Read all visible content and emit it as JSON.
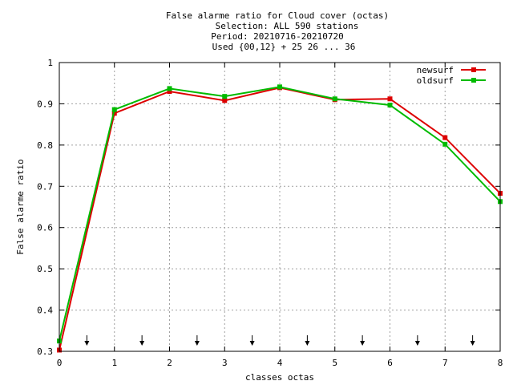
{
  "chart_data": {
    "type": "line",
    "title_lines": [
      "False alarme ratio  for Cloud cover (octas)",
      "Selection: ALL    590 stations",
      "Period: 20210716-20210720",
      "Used {00,12} + 25 26 ... 36"
    ],
    "xlabel": "classes octas",
    "ylabel": "False alarme ratio",
    "xlim": [
      0,
      8
    ],
    "ylim": [
      0.3,
      1
    ],
    "x_ticks": [
      "0",
      "1",
      "2",
      "3",
      "4",
      "5",
      "6",
      "7",
      "8"
    ],
    "y_ticks": [
      "0.3",
      "0.4",
      "0.5",
      "0.6",
      "0.7",
      "0.8",
      "0.9",
      "1"
    ],
    "grid": true,
    "legend_position": "top-right",
    "x": [
      0,
      1,
      2,
      3,
      4,
      5,
      6,
      7,
      8
    ],
    "series": [
      {
        "name": "newsurf",
        "color": "#dd0000",
        "values": [
          0.303,
          0.877,
          0.93,
          0.908,
          0.939,
          0.91,
          0.912,
          0.818,
          0.683
        ]
      },
      {
        "name": "oldsurf",
        "color": "#00bb00",
        "values": [
          0.325,
          0.886,
          0.937,
          0.918,
          0.941,
          0.912,
          0.897,
          0.802,
          0.663
        ]
      }
    ],
    "arrow_markers_x": [
      0.5,
      1.5,
      2.5,
      3.5,
      4.5,
      5.5,
      6.5,
      7.5
    ]
  }
}
